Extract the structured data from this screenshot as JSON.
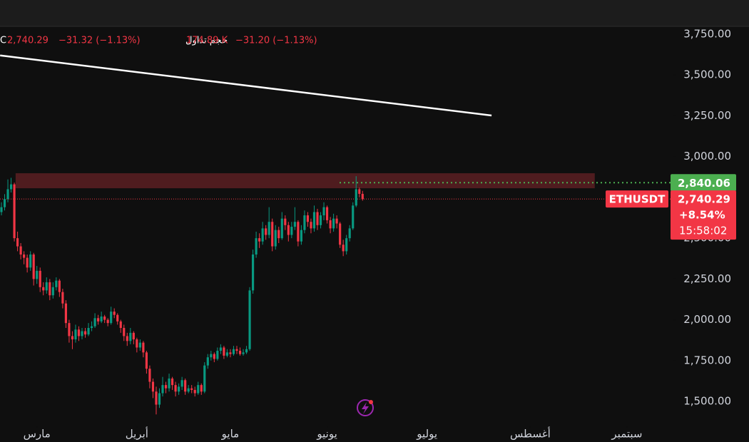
{
  "chart_data": {
    "type": "candlestick",
    "symbol": "ETHUSDT",
    "header": {
      "close_prefix": "C",
      "close": "2,740.29",
      "close_change": "−31.32 (−1.13%)",
      "volume_label": "حجم تداول",
      "volume": "174.89 K",
      "volume_change": "−31.20 (−1.13%)"
    },
    "up_color": "#089981",
    "down_color": "#f23645",
    "xlim": [
      -0.44,
      207.5
    ],
    "xticks": [
      {
        "value": 11,
        "label": "مارس"
      },
      {
        "value": 42,
        "label": "أبريل"
      },
      {
        "value": 71,
        "label": "مايو"
      },
      {
        "value": 101,
        "label": "يونيو"
      },
      {
        "value": 132,
        "label": "يوليو"
      },
      {
        "value": 164,
        "label": "أغسطس"
      },
      {
        "value": 194,
        "label": "سبتمبر"
      }
    ],
    "ylim": [
      3750,
      1500
    ],
    "yticks": [
      {
        "value": 3750,
        "label": "3,750.00"
      },
      {
        "value": 3500,
        "label": "3,500.00"
      },
      {
        "value": 3250,
        "label": "3,250.00"
      },
      {
        "value": 3000,
        "label": "3,000.00"
      },
      {
        "value": 2750,
        "label": "2,750.00"
      },
      {
        "value": 2500,
        "label": "2,500.00"
      },
      {
        "value": 2250,
        "label": "2,250.00"
      },
      {
        "value": 2000,
        "label": "2,000.00"
      },
      {
        "value": 1750,
        "label": "1,750.00"
      },
      {
        "value": 1500,
        "label": "1,500.00"
      }
    ],
    "ohlc": [
      [
        2660,
        2720,
        2640,
        2690
      ],
      [
        2690,
        2770,
        2670,
        2740
      ],
      [
        2740,
        2860,
        2720,
        2800
      ],
      [
        2800,
        2870,
        2780,
        2830
      ],
      [
        2830,
        2840,
        2480,
        2500
      ],
      [
        2500,
        2540,
        2420,
        2450
      ],
      [
        2450,
        2470,
        2370,
        2400
      ],
      [
        2400,
        2420,
        2340,
        2380
      ],
      [
        2380,
        2400,
        2290,
        2320
      ],
      [
        2320,
        2420,
        2300,
        2400
      ],
      [
        2400,
        2410,
        2210,
        2250
      ],
      [
        2250,
        2330,
        2220,
        2300
      ],
      [
        2300,
        2320,
        2170,
        2200
      ],
      [
        2200,
        2230,
        2150,
        2180
      ],
      [
        2180,
        2260,
        2160,
        2230
      ],
      [
        2230,
        2250,
        2120,
        2150
      ],
      [
        2150,
        2230,
        2130,
        2200
      ],
      [
        2200,
        2260,
        2180,
        2240
      ],
      [
        2240,
        2250,
        2140,
        2170
      ],
      [
        2170,
        2190,
        2070,
        2100
      ],
      [
        2100,
        2120,
        1950,
        1980
      ],
      [
        1980,
        2000,
        1860,
        1900
      ],
      [
        1900,
        1930,
        1820,
        1880
      ],
      [
        1880,
        1970,
        1860,
        1940
      ],
      [
        1940,
        1960,
        1870,
        1900
      ],
      [
        1900,
        1950,
        1880,
        1930
      ],
      [
        1930,
        1950,
        1890,
        1910
      ],
      [
        1910,
        1980,
        1900,
        1950
      ],
      [
        1950,
        1990,
        1930,
        1960
      ],
      [
        1960,
        2040,
        1950,
        2010
      ],
      [
        2010,
        2030,
        1970,
        1990
      ],
      [
        1990,
        2050,
        1980,
        2020
      ],
      [
        2020,
        2030,
        1980,
        2000
      ],
      [
        2000,
        2010,
        1960,
        1980
      ],
      [
        1980,
        2080,
        1970,
        2050
      ],
      [
        2050,
        2070,
        2010,
        2030
      ],
      [
        2030,
        2040,
        1970,
        1990
      ],
      [
        1990,
        2000,
        1920,
        1950
      ],
      [
        1950,
        1970,
        1870,
        1900
      ],
      [
        1900,
        1920,
        1840,
        1870
      ],
      [
        1870,
        1950,
        1850,
        1920
      ],
      [
        1920,
        1930,
        1850,
        1880
      ],
      [
        1880,
        1890,
        1800,
        1830
      ],
      [
        1830,
        1880,
        1810,
        1860
      ],
      [
        1860,
        1870,
        1770,
        1800
      ],
      [
        1800,
        1810,
        1670,
        1700
      ],
      [
        1700,
        1720,
        1580,
        1620
      ],
      [
        1620,
        1640,
        1520,
        1560
      ],
      [
        1560,
        1590,
        1420,
        1480
      ],
      [
        1480,
        1580,
        1460,
        1550
      ],
      [
        1550,
        1650,
        1530,
        1600
      ],
      [
        1600,
        1620,
        1550,
        1580
      ],
      [
        1580,
        1670,
        1560,
        1640
      ],
      [
        1640,
        1650,
        1570,
        1600
      ],
      [
        1600,
        1620,
        1530,
        1560
      ],
      [
        1560,
        1610,
        1540,
        1590
      ],
      [
        1590,
        1650,
        1570,
        1630
      ],
      [
        1630,
        1640,
        1540,
        1560
      ],
      [
        1560,
        1600,
        1550,
        1580
      ],
      [
        1580,
        1600,
        1550,
        1570
      ],
      [
        1570,
        1590,
        1530,
        1550
      ],
      [
        1550,
        1620,
        1540,
        1600
      ],
      [
        1600,
        1610,
        1540,
        1560
      ],
      [
        1560,
        1740,
        1550,
        1720
      ],
      [
        1720,
        1790,
        1700,
        1770
      ],
      [
        1770,
        1810,
        1750,
        1790
      ],
      [
        1790,
        1800,
        1740,
        1760
      ],
      [
        1760,
        1830,
        1750,
        1810
      ],
      [
        1810,
        1850,
        1790,
        1830
      ],
      [
        1830,
        1840,
        1760,
        1780
      ],
      [
        1780,
        1820,
        1770,
        1800
      ],
      [
        1800,
        1820,
        1770,
        1790
      ],
      [
        1790,
        1840,
        1780,
        1820
      ],
      [
        1820,
        1840,
        1790,
        1810
      ],
      [
        1810,
        1830,
        1780,
        1790
      ],
      [
        1790,
        1820,
        1780,
        1800
      ],
      [
        1800,
        1840,
        1790,
        1820
      ],
      [
        1820,
        2200,
        1810,
        2180
      ],
      [
        2180,
        2430,
        2160,
        2400
      ],
      [
        2400,
        2540,
        2380,
        2500
      ],
      [
        2500,
        2530,
        2440,
        2480
      ],
      [
        2480,
        2600,
        2460,
        2560
      ],
      [
        2560,
        2580,
        2490,
        2520
      ],
      [
        2520,
        2690,
        2500,
        2600
      ],
      [
        2600,
        2620,
        2420,
        2450
      ],
      [
        2450,
        2580,
        2430,
        2550
      ],
      [
        2550,
        2570,
        2470,
        2500
      ],
      [
        2500,
        2660,
        2490,
        2620
      ],
      [
        2620,
        2640,
        2550,
        2580
      ],
      [
        2580,
        2600,
        2480,
        2520
      ],
      [
        2520,
        2600,
        2500,
        2570
      ],
      [
        2570,
        2690,
        2550,
        2600
      ],
      [
        2600,
        2610,
        2450,
        2480
      ],
      [
        2480,
        2580,
        2460,
        2550
      ],
      [
        2550,
        2670,
        2530,
        2640
      ],
      [
        2640,
        2660,
        2570,
        2600
      ],
      [
        2600,
        2620,
        2530,
        2560
      ],
      [
        2560,
        2700,
        2540,
        2660
      ],
      [
        2660,
        2680,
        2550,
        2580
      ],
      [
        2580,
        2660,
        2560,
        2640
      ],
      [
        2640,
        2720,
        2610,
        2690
      ],
      [
        2690,
        2700,
        2590,
        2610
      ],
      [
        2610,
        2630,
        2530,
        2560
      ],
      [
        2560,
        2650,
        2540,
        2620
      ],
      [
        2620,
        2640,
        2560,
        2590
      ],
      [
        2590,
        2600,
        2440,
        2460
      ],
      [
        2460,
        2490,
        2390,
        2420
      ],
      [
        2420,
        2520,
        2400,
        2500
      ],
      [
        2500,
        2580,
        2480,
        2560
      ],
      [
        2560,
        2720,
        2550,
        2700
      ],
      [
        2700,
        2880,
        2690,
        2800
      ],
      [
        2800,
        2810,
        2750,
        2771.61
      ],
      [
        2771.61,
        2790,
        2730,
        2740.29
      ]
    ],
    "trendline": {
      "x": [
        -0.4,
        152
      ],
      "values": [
        3620,
        3252
      ],
      "color": "#ffffff"
    },
    "zone": {
      "x": [
        4.4,
        184
      ],
      "low": 2806,
      "high": 2898,
      "color": "#5a1e22"
    },
    "level": {
      "value": 2840.06,
      "label": "2,840.06",
      "color": "#4caf50"
    },
    "last_price": {
      "value": 2740.29,
      "label": "2,740.29"
    },
    "change_label": "+8.54%",
    "countdown": "15:58:02"
  }
}
